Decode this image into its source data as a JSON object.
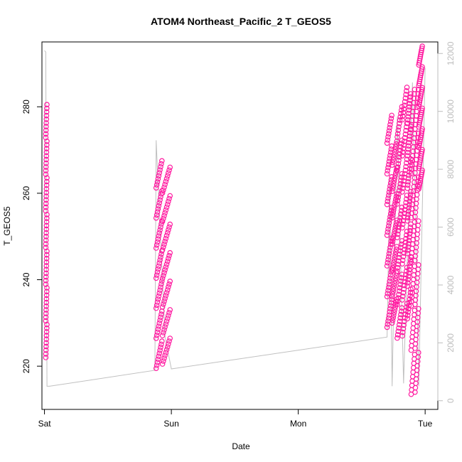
{
  "chart_data": {
    "type": "scatter",
    "title": "ATOM4 Northeast_Pacific_2 T_GEOS5",
    "xlabel": "Date",
    "ylabel": "T_GEOS5",
    "xlim": [
      -0.02,
      3.1
    ],
    "ylim": [
      210,
      295
    ],
    "x_ticks": [
      {
        "value": 0,
        "label": "Sat"
      },
      {
        "value": 1,
        "label": "Sun"
      },
      {
        "value": 2,
        "label": "Mon"
      },
      {
        "value": 3,
        "label": "Tue"
      }
    ],
    "y_ticks": [
      220,
      240,
      260,
      280
    ],
    "y2lim": [
      -300,
      12400
    ],
    "y2_ticks": [
      0,
      2000,
      4000,
      6000,
      8000,
      10000,
      12000
    ],
    "grid": false,
    "series": [
      {
        "role": "T_GEOS5 points",
        "color": "#ff1aa0",
        "style": "open-circle",
        "segments": [
          {
            "x": [
              0.01,
              0.02
            ],
            "y": [
              222,
              280.5
            ]
          },
          {
            "x": [
              0.88,
              0.93
            ],
            "y": [
              219.5,
              267.5
            ]
          },
          {
            "x": [
              0.93,
              0.995
            ],
            "y": [
              220.5,
              266
            ]
          },
          {
            "x": [
              2.7,
              2.74
            ],
            "y": [
              229,
              278
            ]
          },
          {
            "x": [
              2.74,
              2.78
            ],
            "y": [
              230,
              272
            ]
          },
          {
            "x": [
              2.78,
              2.82
            ],
            "y": [
              226.5,
              280
            ]
          },
          {
            "x": [
              2.82,
              2.86
            ],
            "y": [
              227,
              284.5
            ]
          },
          {
            "x": [
              2.86,
              2.89
            ],
            "y": [
              231,
              283
            ]
          },
          {
            "x": [
              2.89,
              2.92
            ],
            "y": [
              213.5,
              284
            ]
          },
          {
            "x": [
              2.92,
              2.95
            ],
            "y": [
              214,
              284
            ]
          },
          {
            "x": [
              2.95,
              2.98
            ],
            "y": [
              261,
              294
            ]
          }
        ]
      },
      {
        "role": "altitude trace (right axis)",
        "color": "#c0c0c0",
        "style": "line",
        "x": [
          0.0,
          0.01,
          0.02,
          0.04,
          0.87,
          0.88,
          0.95,
          1.0,
          2.7,
          2.72,
          2.74,
          2.78,
          2.83,
          2.9,
          2.95,
          3.0
        ],
        "y": [
          12100,
          12050,
          500,
          500,
          1050,
          9000,
          2200,
          1100,
          2200,
          7700,
          500,
          9800,
          600,
          11000,
          500,
          11500
        ]
      }
    ]
  }
}
